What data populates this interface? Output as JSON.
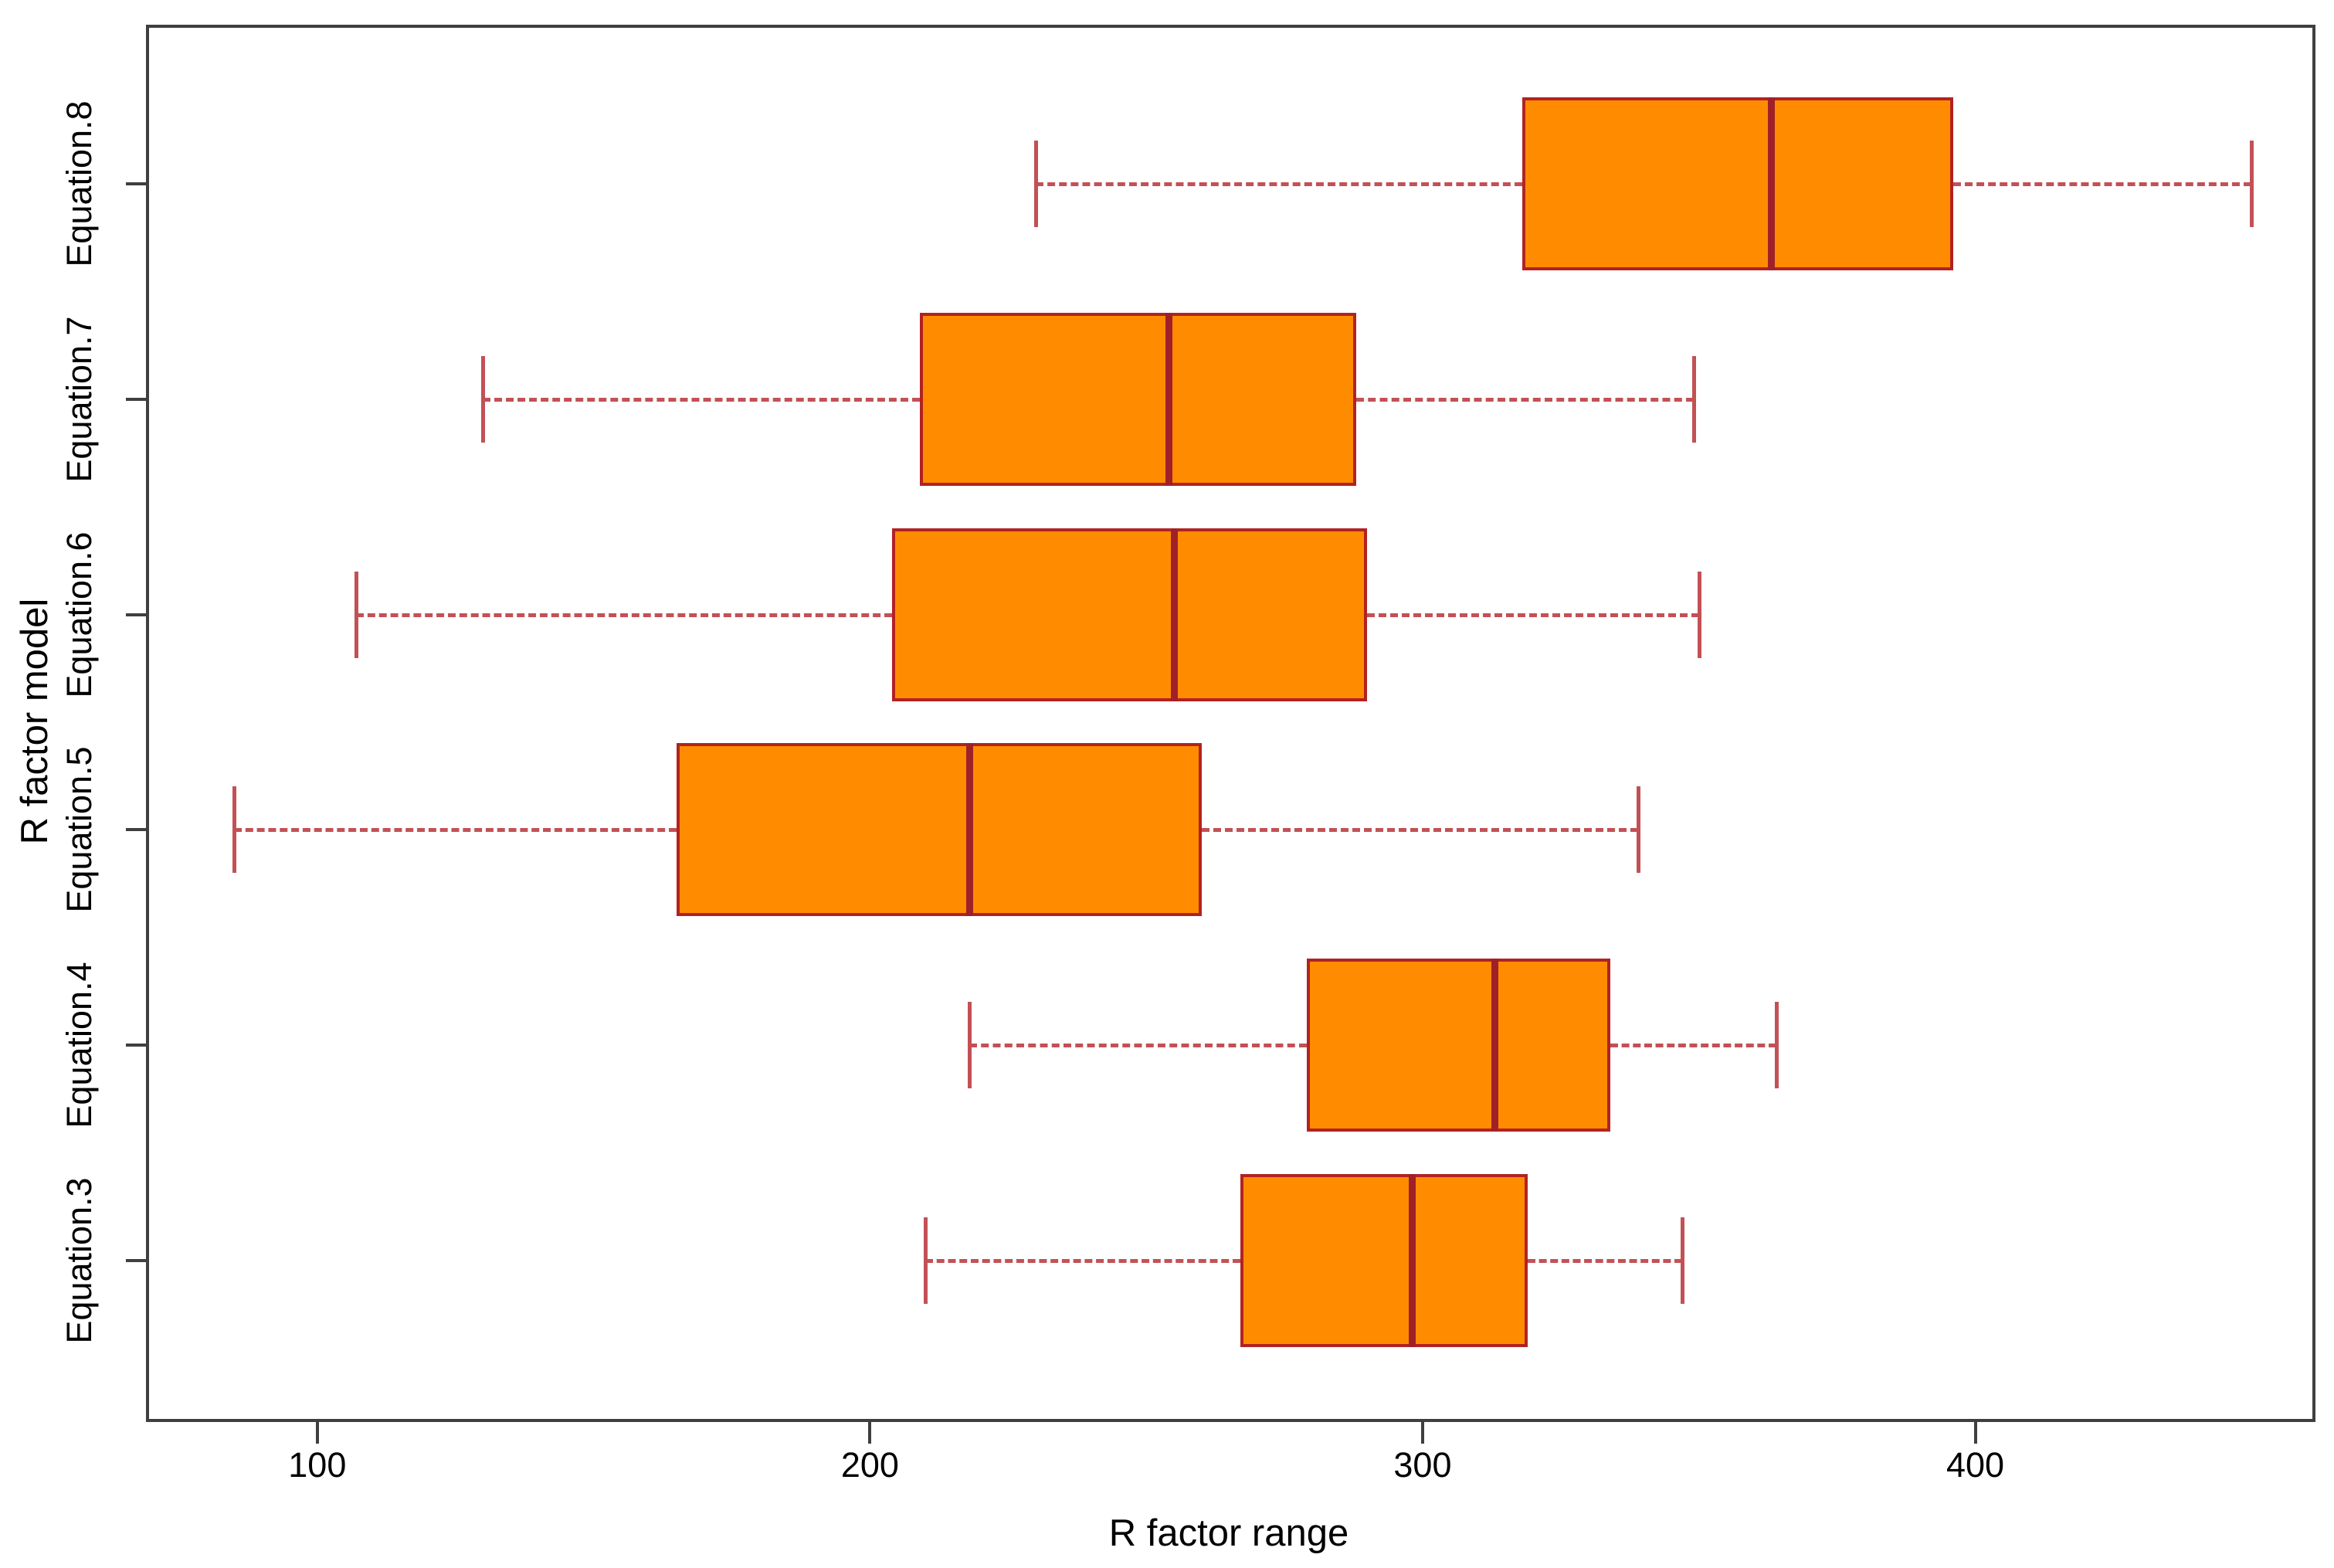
{
  "chart_data": {
    "type": "boxplot",
    "orientation": "horizontal",
    "title": "",
    "xlabel": "R factor range",
    "ylabel": "R factor model",
    "xlim": [
      69,
      461
    ],
    "x_ticks": [
      100,
      200,
      300,
      400
    ],
    "grid": false,
    "legend": "none",
    "categories_bottom_to_top": [
      "Equation.3",
      "Equation.4",
      "Equation.5",
      "Equation.6",
      "Equation.7",
      "Equation.8"
    ],
    "boxes_bottom_to_top": [
      {
        "label": "Equation.3",
        "whisker_low": 210,
        "q1": 267,
        "median": 298,
        "q3": 319,
        "whisker_high": 347
      },
      {
        "label": "Equation.4",
        "whisker_low": 218,
        "q1": 279,
        "median": 313,
        "q3": 334,
        "whisker_high": 364
      },
      {
        "label": "Equation.5",
        "whisker_low": 85,
        "q1": 165,
        "median": 218,
        "q3": 260,
        "whisker_high": 339
      },
      {
        "label": "Equation.6",
        "whisker_low": 107,
        "q1": 204,
        "median": 255,
        "q3": 290,
        "whisker_high": 350
      },
      {
        "label": "Equation.7",
        "whisker_low": 130,
        "q1": 209,
        "median": 254,
        "q3": 288,
        "whisker_high": 349
      },
      {
        "label": "Equation.8",
        "whisker_low": 230,
        "q1": 318,
        "median": 363,
        "q3": 396,
        "whisker_high": 450
      }
    ],
    "colors": {
      "box_fill": "#FF8C00",
      "box_border": "#B22222",
      "median": "#A02028",
      "whisker": "#C25156",
      "frame": "#3f3f3f",
      "text": "#000000"
    }
  }
}
